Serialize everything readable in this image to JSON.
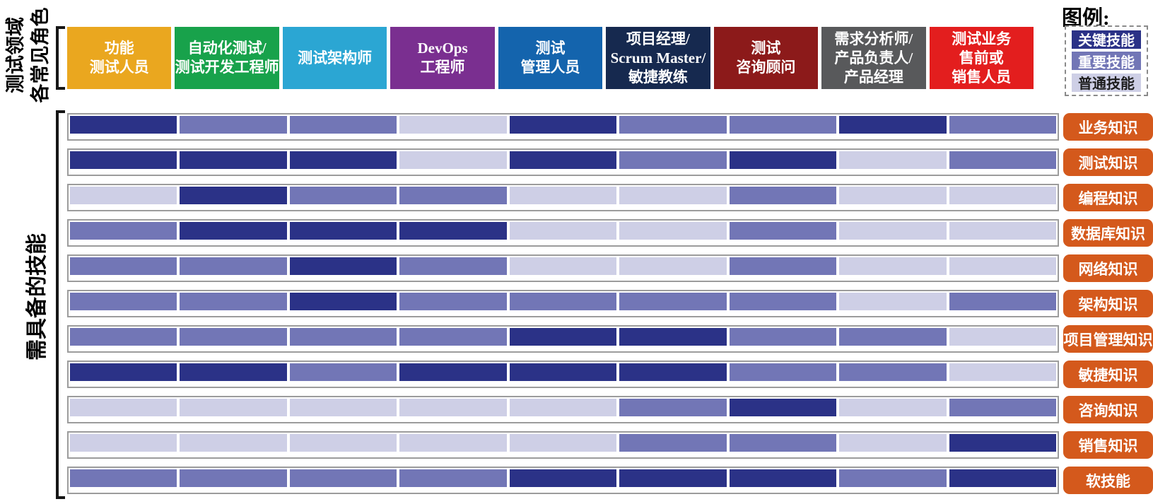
{
  "figure": {
    "left_titles": {
      "roles_line1": "测试领域",
      "roles_line2": "各常见角色",
      "skills": "需具备的技能"
    },
    "legend": {
      "title": "图例:",
      "items": [
        {
          "label": "关键技能",
          "level": "key"
        },
        {
          "label": "重要技能",
          "level": "important"
        },
        {
          "label": "普通技能",
          "level": "ordinary"
        }
      ]
    },
    "level_colors": {
      "key": "#2B3287",
      "important": "#7276B6",
      "ordinary": "#CECFE6"
    },
    "level_text_colors": {
      "key": "#ffffff",
      "important": "#ffffff",
      "ordinary": "#1d1d1d"
    },
    "skill_label_color": "#D4591C",
    "roles": [
      {
        "lines": [
          "功能",
          "测试人员"
        ],
        "color": "#EAA71F"
      },
      {
        "lines": [
          "自动化测试/",
          "测试开发工程师"
        ],
        "color": "#18A24B"
      },
      {
        "lines": [
          "测试架构师"
        ],
        "color": "#2BA6D3"
      },
      {
        "lines": [
          "DevOps",
          "工程师"
        ],
        "color": "#7A2F90"
      },
      {
        "lines": [
          "测试",
          "管理人员"
        ],
        "color": "#1464AD"
      },
      {
        "lines": [
          "项目经理/",
          "Scrum Master/",
          "敏捷教练"
        ],
        "color": "#16294F"
      },
      {
        "lines": [
          "测试",
          "咨询顾问"
        ],
        "color": "#8C1A1A"
      },
      {
        "lines": [
          "需求分析师/",
          "产品负责人/",
          "产品经理"
        ],
        "color": "#58595B"
      },
      {
        "lines": [
          "测试业务",
          "售前或",
          "销售人员"
        ],
        "color": "#E31E1E"
      }
    ],
    "skills": [
      {
        "label": "业务知识",
        "levels": [
          "key",
          "important",
          "important",
          "ordinary",
          "key",
          "important",
          "important",
          "key",
          "important"
        ]
      },
      {
        "label": "测试知识",
        "levels": [
          "key",
          "key",
          "key",
          "ordinary",
          "key",
          "important",
          "key",
          "ordinary",
          "important"
        ]
      },
      {
        "label": "编程知识",
        "levels": [
          "ordinary",
          "key",
          "important",
          "important",
          "ordinary",
          "ordinary",
          "important",
          "ordinary",
          "ordinary"
        ]
      },
      {
        "label": "数据库知识",
        "levels": [
          "important",
          "key",
          "key",
          "key",
          "ordinary",
          "ordinary",
          "important",
          "ordinary",
          "ordinary"
        ]
      },
      {
        "label": "网络知识",
        "levels": [
          "important",
          "important",
          "key",
          "important",
          "ordinary",
          "ordinary",
          "important",
          "ordinary",
          "ordinary"
        ]
      },
      {
        "label": "架构知识",
        "levels": [
          "important",
          "important",
          "key",
          "important",
          "important",
          "important",
          "important",
          "ordinary",
          "important"
        ]
      },
      {
        "label": "项目管理知识",
        "levels": [
          "important",
          "important",
          "important",
          "important",
          "key",
          "key",
          "important",
          "important",
          "ordinary"
        ]
      },
      {
        "label": "敏捷知识",
        "levels": [
          "key",
          "key",
          "important",
          "key",
          "key",
          "key",
          "important",
          "important",
          "ordinary"
        ]
      },
      {
        "label": "咨询知识",
        "levels": [
          "ordinary",
          "ordinary",
          "ordinary",
          "ordinary",
          "ordinary",
          "important",
          "key",
          "ordinary",
          "important"
        ]
      },
      {
        "label": "销售知识",
        "levels": [
          "ordinary",
          "ordinary",
          "ordinary",
          "ordinary",
          "ordinary",
          "important",
          "important",
          "ordinary",
          "key"
        ]
      },
      {
        "label": "软技能",
        "levels": [
          "important",
          "important",
          "important",
          "important",
          "key",
          "key",
          "key",
          "important",
          "key"
        ]
      }
    ]
  },
  "chart_data": {
    "type": "heatmap",
    "title": "测试领域各常见角色所需具备的技能矩阵",
    "x_categories": [
      "功能测试人员",
      "自动化测试/测试开发工程师",
      "测试架构师",
      "DevOps工程师",
      "测试管理人员",
      "项目经理/Scrum Master/敏捷教练",
      "测试咨询顾问",
      "需求分析师/产品负责人/产品经理",
      "测试业务售前或销售人员"
    ],
    "y_categories": [
      "业务知识",
      "测试知识",
      "编程知识",
      "数据库知识",
      "网络知识",
      "架构知识",
      "项目管理知识",
      "敏捷知识",
      "咨询知识",
      "销售知识",
      "软技能"
    ],
    "values": [
      [
        "key",
        "important",
        "important",
        "ordinary",
        "key",
        "important",
        "important",
        "key",
        "important"
      ],
      [
        "key",
        "key",
        "key",
        "ordinary",
        "key",
        "important",
        "key",
        "ordinary",
        "important"
      ],
      [
        "ordinary",
        "key",
        "important",
        "important",
        "ordinary",
        "ordinary",
        "important",
        "ordinary",
        "ordinary"
      ],
      [
        "important",
        "key",
        "key",
        "key",
        "ordinary",
        "ordinary",
        "important",
        "ordinary",
        "ordinary"
      ],
      [
        "important",
        "important",
        "key",
        "important",
        "ordinary",
        "ordinary",
        "important",
        "ordinary",
        "ordinary"
      ],
      [
        "important",
        "important",
        "key",
        "important",
        "important",
        "important",
        "important",
        "ordinary",
        "important"
      ],
      [
        "important",
        "important",
        "important",
        "important",
        "key",
        "key",
        "important",
        "important",
        "ordinary"
      ],
      [
        "key",
        "key",
        "important",
        "key",
        "key",
        "key",
        "important",
        "important",
        "ordinary"
      ],
      [
        "ordinary",
        "ordinary",
        "ordinary",
        "ordinary",
        "ordinary",
        "important",
        "key",
        "ordinary",
        "important"
      ],
      [
        "ordinary",
        "ordinary",
        "ordinary",
        "ordinary",
        "ordinary",
        "important",
        "important",
        "ordinary",
        "key"
      ],
      [
        "important",
        "important",
        "important",
        "important",
        "key",
        "key",
        "key",
        "important",
        "key"
      ]
    ],
    "value_legend": {
      "key": {
        "label": "关键技能",
        "color": "#2B3287"
      },
      "important": {
        "label": "重要技能",
        "color": "#7276B6"
      },
      "ordinary": {
        "label": "普通技能",
        "color": "#CECFE6"
      }
    },
    "legend_position": "top-right",
    "grid": false
  }
}
